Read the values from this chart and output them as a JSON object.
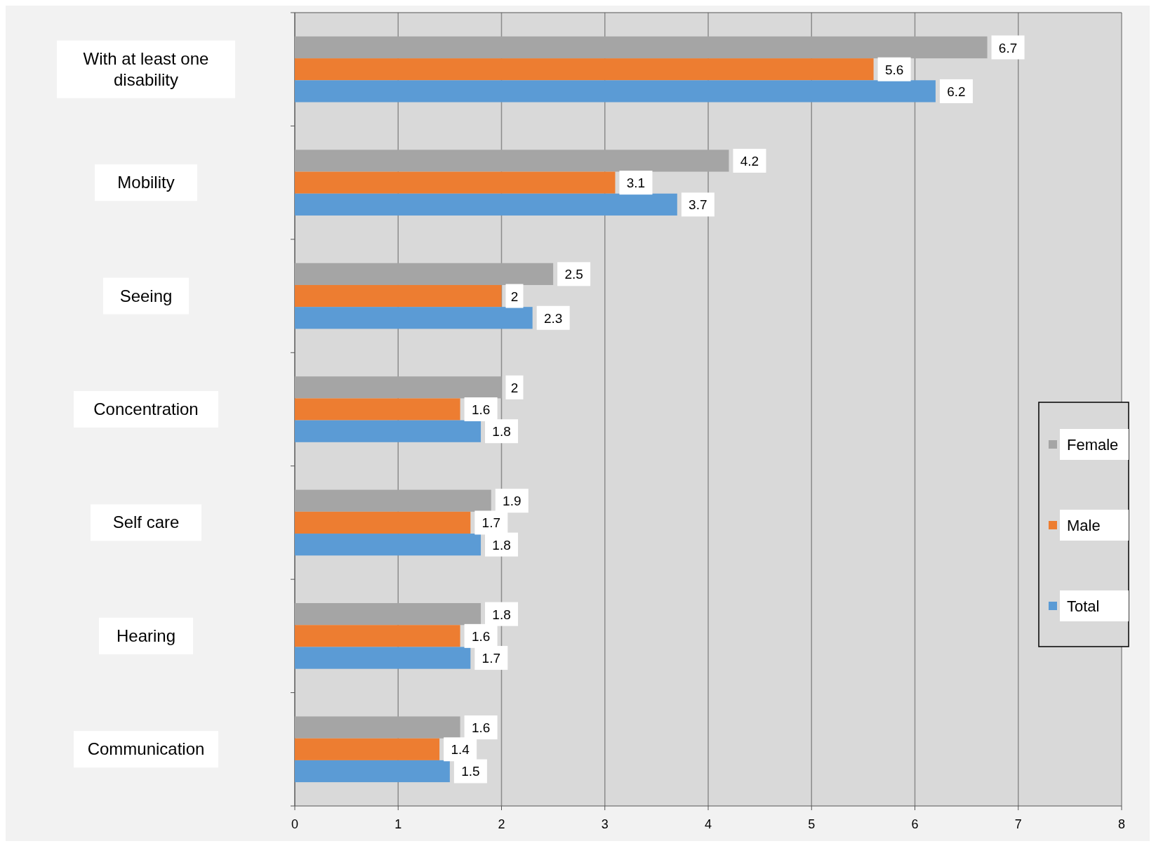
{
  "chart_data": {
    "type": "bar",
    "orientation": "horizontal",
    "categories": [
      "With at least one disability",
      "Mobility",
      "Seeing",
      "Concentration",
      "Self care",
      "Hearing",
      "Communication"
    ],
    "series": [
      {
        "name": "Female",
        "color": "#a5a5a5",
        "values": [
          6.7,
          4.2,
          2.5,
          2,
          1.9,
          1.8,
          1.6
        ]
      },
      {
        "name": "Male",
        "color": "#ed7d31",
        "values": [
          5.6,
          3.1,
          2,
          1.6,
          1.7,
          1.6,
          1.4
        ]
      },
      {
        "name": "Total",
        "color": "#5b9bd5",
        "values": [
          6.2,
          3.7,
          2.3,
          1.8,
          1.8,
          1.7,
          1.5
        ]
      }
    ],
    "xlim": [
      0,
      8
    ],
    "xticks": [
      0,
      1,
      2,
      3,
      4,
      5,
      6,
      7,
      8
    ],
    "grid": "x",
    "legend": "right",
    "data_labels": true
  }
}
